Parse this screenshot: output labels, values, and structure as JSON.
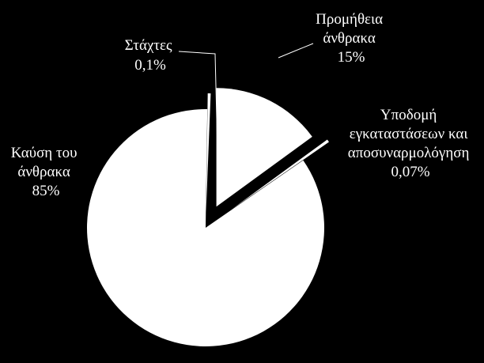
{
  "chart_data": {
    "type": "pie",
    "slices": [
      {
        "label": [
          "Προμήθεια",
          "άνθρακα"
        ],
        "value": 15,
        "value_label": "15%",
        "color": "#ffffff"
      },
      {
        "label": [
          "Υποδομή",
          "εγκαταστάσεων και",
          "αποσυναρμολόγηση"
        ],
        "value": 0.07,
        "value_label": "0,07%",
        "color": "#ffffff"
      },
      {
        "label": [
          "Καύση του",
          "άνθρακα"
        ],
        "value": 85,
        "value_label": "85%",
        "color": "#ffffff"
      },
      {
        "label": [
          "Στάχτες"
        ],
        "value": 0.1,
        "value_label": "0,1%",
        "color": "#ffffff"
      }
    ],
    "background": "#000000",
    "start_angle_deg": 0,
    "direction": "clockwise",
    "exploded": true,
    "legend": "none"
  }
}
